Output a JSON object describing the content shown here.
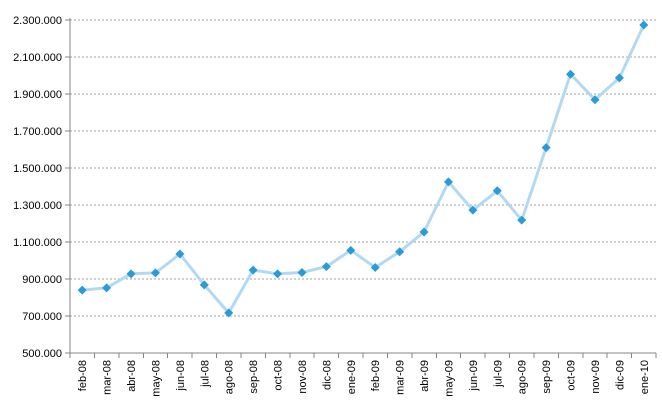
{
  "chart_data": {
    "type": "line",
    "categories": [
      "feb-08",
      "mar-08",
      "abr-08",
      "may-08",
      "jun-08",
      "jul-08",
      "ago-08",
      "sep-08",
      "oct-08",
      "nov-08",
      "dic-08",
      "ene-09",
      "feb-09",
      "mar-09",
      "abr-09",
      "may-09",
      "jun-09",
      "jul-09",
      "ago-09",
      "sep-09",
      "oct-09",
      "nov-09",
      "dic-09",
      "ene-10"
    ],
    "values": [
      840000,
      852000,
      928000,
      933000,
      1035000,
      868000,
      717000,
      948000,
      928000,
      935000,
      967000,
      1055000,
      962000,
      1047000,
      1154000,
      1425000,
      1272000,
      1377000,
      1218000,
      1610000,
      2007000,
      1869000,
      1987000,
      2273000
    ],
    "y_ticks": [
      "500.000",
      "700.000",
      "900.000",
      "1.100.000",
      "1.300.000",
      "1.500.000",
      "1.700.000",
      "1.900.000",
      "2.100.000",
      "2.300.000"
    ],
    "ylim": [
      500000,
      2300000
    ],
    "grid": true,
    "line_color": "#b3d9f2",
    "marker_color": "#2a9bd9",
    "grid_color": "#a0a0a0",
    "axis_color": "#868686"
  }
}
